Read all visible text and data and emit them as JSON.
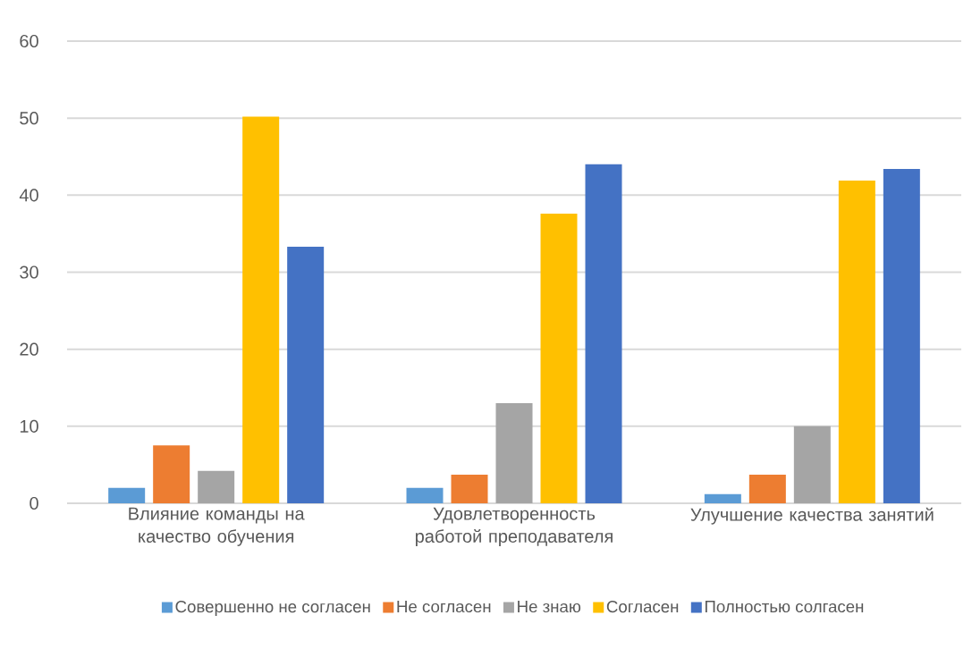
{
  "chart_data": {
    "type": "bar",
    "categories": [
      "Влияние команды на качество обучения",
      "Удовлетворенность работой преподавателя",
      "Улучшение качества занятий"
    ],
    "series": [
      {
        "name": "Совершенно не согласен",
        "color": "#5b9bd5",
        "values": [
          2,
          2,
          1.2
        ]
      },
      {
        "name": "Не согласен",
        "color": "#ed7d31",
        "values": [
          7.5,
          3.7,
          3.7
        ]
      },
      {
        "name": "Не знаю",
        "color": "#a5a5a5",
        "values": [
          4.2,
          13,
          10
        ]
      },
      {
        "name": "Согласен",
        "color": "#ffc000",
        "values": [
          50.2,
          37.6,
          41.9
        ]
      },
      {
        "name": "Полностью солгасен",
        "color": "#4472c4",
        "values": [
          33.3,
          44,
          43.4
        ]
      }
    ],
    "ylim": [
      0,
      60
    ],
    "yticks": [
      0,
      10,
      20,
      30,
      40,
      50,
      60
    ],
    "grid": "y",
    "legend": "bottom"
  }
}
